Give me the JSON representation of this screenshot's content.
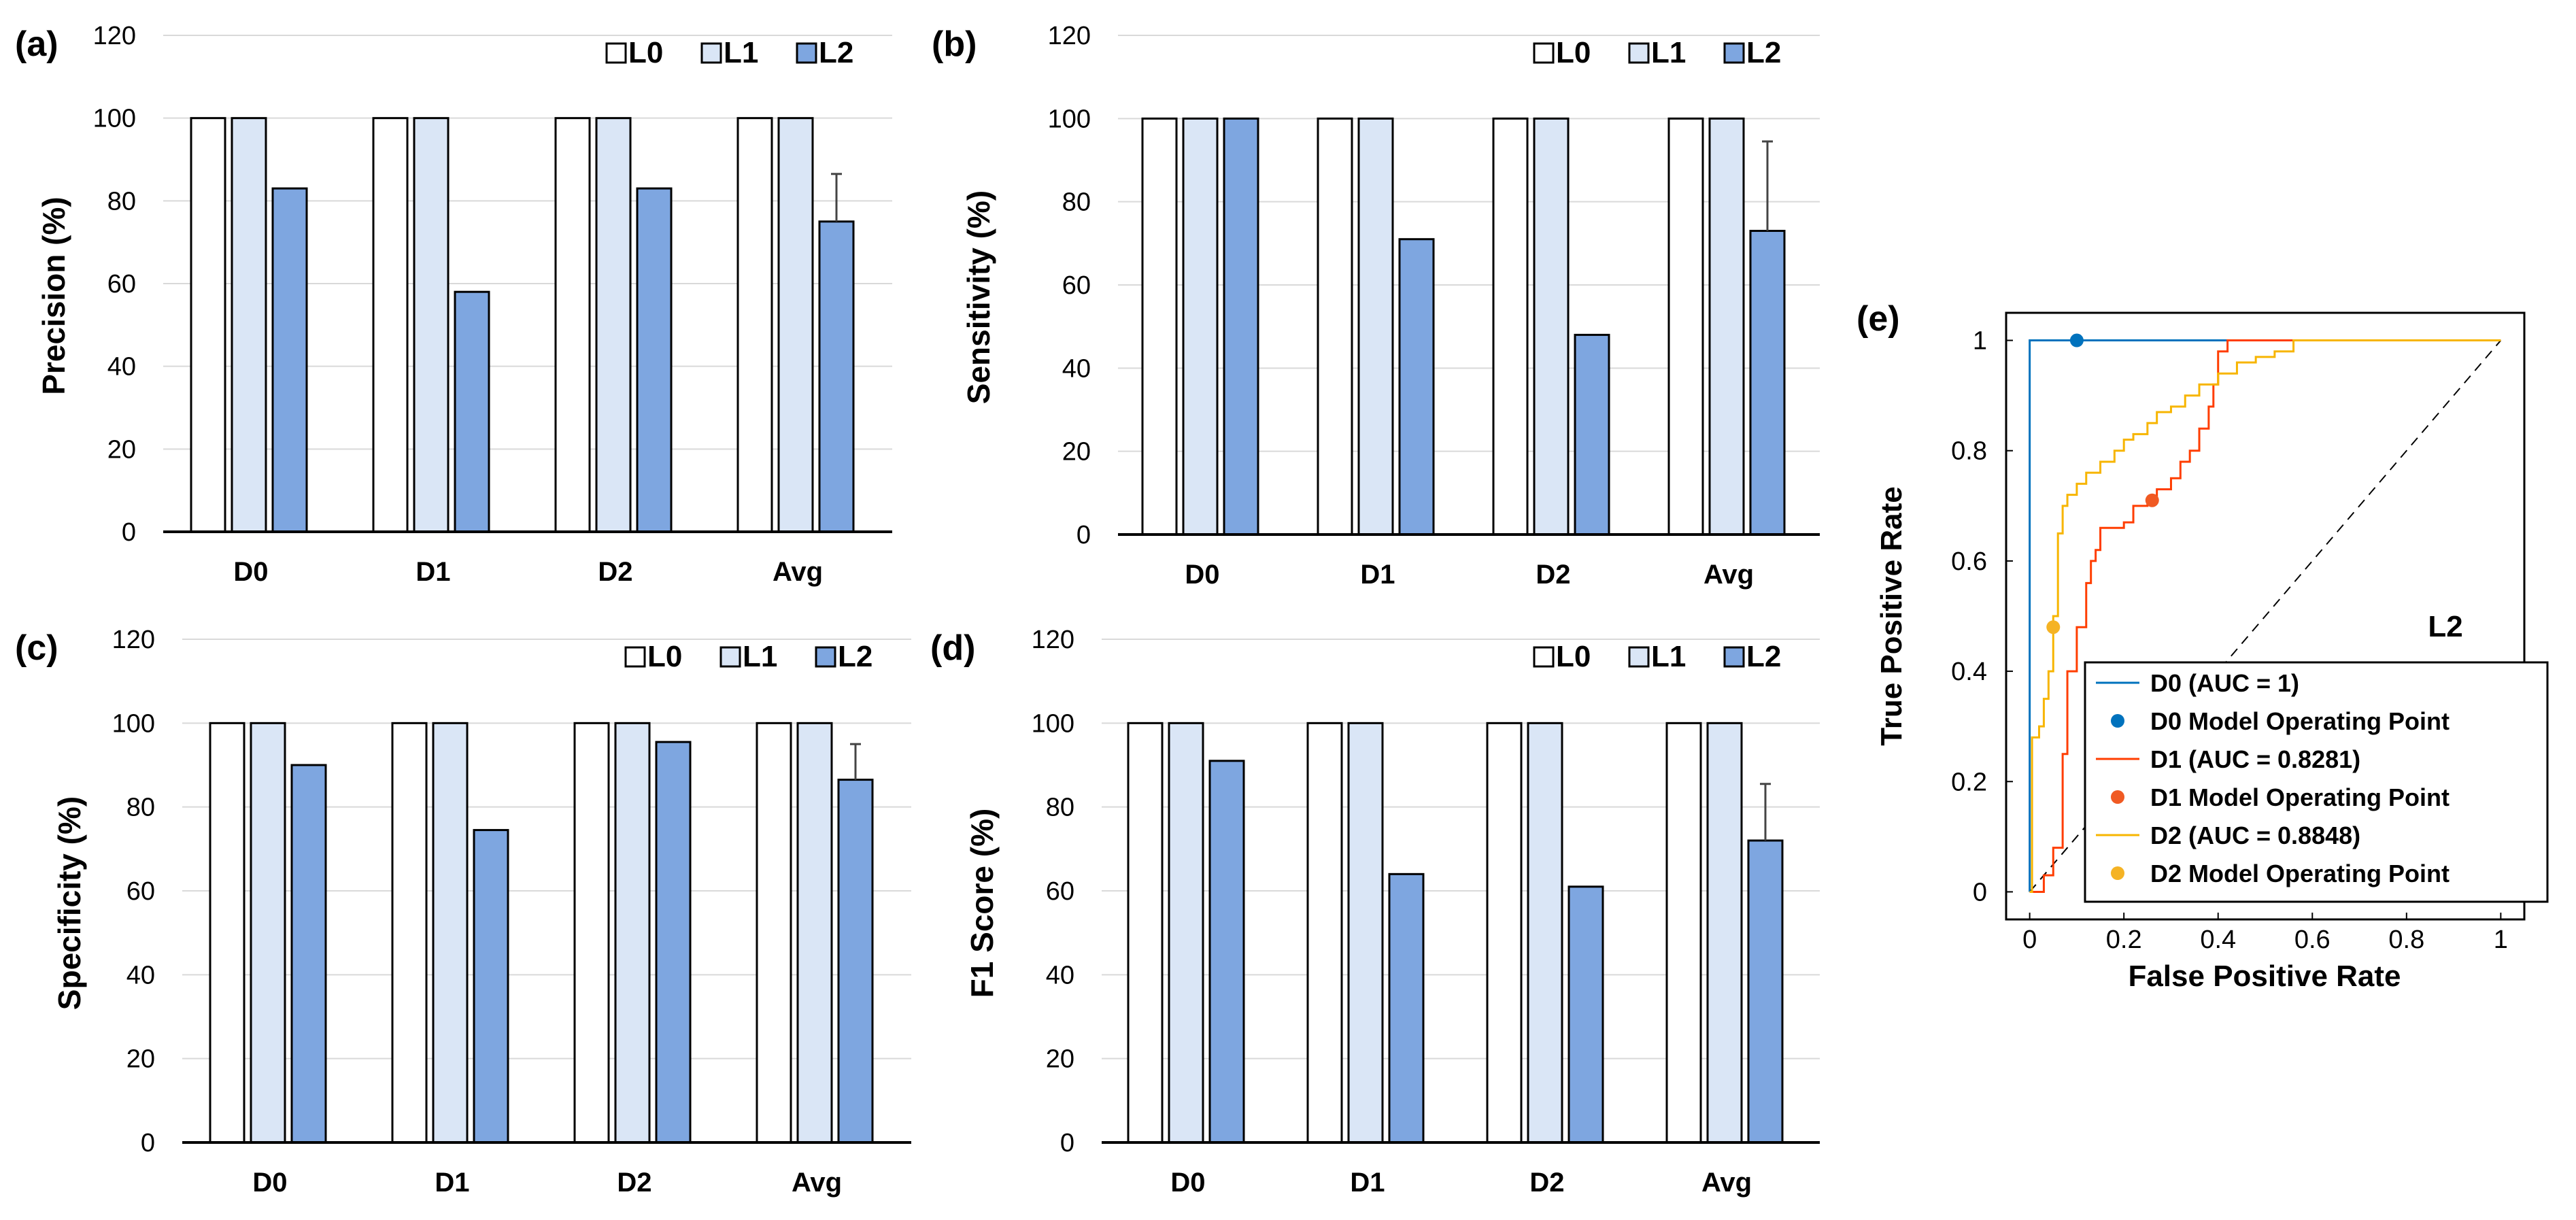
{
  "colors": {
    "L0": "#ffffff",
    "L1": "#dae6f6",
    "L2": "#7ea6e0",
    "grid": "#d9d9d9",
    "D0_roc": "#0072bd",
    "D1_roc": "#ff3d00",
    "D2_roc": "#f7b500",
    "D0_point": "#0072bd",
    "D1_point": "#f05a23",
    "D2_point": "#f5b324"
  },
  "chart_data": [
    {
      "id": "a",
      "panel_label": "(a)",
      "type": "bar",
      "ylabel": "Precision (%)",
      "ylim": [
        0,
        120
      ],
      "yticks": [
        "0",
        "20",
        "40",
        "60",
        "80",
        "100",
        "120"
      ],
      "categories": [
        "D0",
        "D1",
        "D2",
        "Avg"
      ],
      "legend": [
        "L0",
        "L1",
        "L2"
      ],
      "legend_position": "top-right",
      "grid": true,
      "series": [
        {
          "name": "L0",
          "values": [
            100,
            100,
            100,
            100
          ]
        },
        {
          "name": "L1",
          "values": [
            100,
            100,
            100,
            100
          ]
        },
        {
          "name": "L2",
          "values": [
            83,
            58,
            83,
            75
          ],
          "error": [
            0,
            0,
            0,
            11.5
          ]
        }
      ]
    },
    {
      "id": "b",
      "panel_label": "(b)",
      "type": "bar",
      "ylabel": "Sensitivity (%)",
      "ylim": [
        0,
        120
      ],
      "yticks": [
        "0",
        "20",
        "40",
        "60",
        "80",
        "100",
        "120"
      ],
      "categories": [
        "D0",
        "D1",
        "D2",
        "Avg"
      ],
      "legend": [
        "L0",
        "L1",
        "L2"
      ],
      "legend_position": "top-right",
      "grid": true,
      "series": [
        {
          "name": "L0",
          "values": [
            100,
            100,
            100,
            100
          ]
        },
        {
          "name": "L1",
          "values": [
            100,
            100,
            100,
            100
          ]
        },
        {
          "name": "L2",
          "values": [
            100,
            71,
            48,
            73
          ],
          "error": [
            0,
            0,
            0,
            21.5
          ]
        }
      ]
    },
    {
      "id": "c",
      "panel_label": "(c)",
      "type": "bar",
      "ylabel": "Specificity (%)",
      "ylim": [
        0,
        120
      ],
      "yticks": [
        "0",
        "20",
        "40",
        "60",
        "80",
        "100",
        "120"
      ],
      "categories": [
        "D0",
        "D1",
        "D2",
        "Avg"
      ],
      "legend": [
        "L0",
        "L1",
        "L2"
      ],
      "legend_position": "top-right",
      "grid": true,
      "series": [
        {
          "name": "L0",
          "values": [
            100,
            100,
            100,
            100
          ]
        },
        {
          "name": "L1",
          "values": [
            100,
            100,
            100,
            100
          ]
        },
        {
          "name": "L2",
          "values": [
            90,
            74.5,
            95.5,
            86.5
          ],
          "error": [
            0,
            0,
            0,
            8.5
          ]
        }
      ]
    },
    {
      "id": "d",
      "panel_label": "(d)",
      "type": "bar",
      "ylabel": "F1 Score (%)",
      "ylim": [
        0,
        120
      ],
      "yticks": [
        "0",
        "20",
        "40",
        "60",
        "80",
        "100",
        "120"
      ],
      "categories": [
        "D0",
        "D1",
        "D2",
        "Avg"
      ],
      "legend": [
        "L0",
        "L1",
        "L2"
      ],
      "legend_position": "top-right",
      "grid": true,
      "series": [
        {
          "name": "L0",
          "values": [
            100,
            100,
            100,
            100
          ]
        },
        {
          "name": "L1",
          "values": [
            100,
            100,
            100,
            100
          ]
        },
        {
          "name": "L2",
          "values": [
            91,
            64,
            61,
            72
          ],
          "error": [
            0,
            0,
            0,
            13.5
          ]
        }
      ]
    },
    {
      "id": "e",
      "panel_label": "(e)",
      "type": "line",
      "title": "L2",
      "xlabel": "False Positive Rate",
      "ylabel": "True Positive Rate",
      "xlim": [
        0,
        1
      ],
      "ylim": [
        0,
        1
      ],
      "xticks": [
        "0",
        "0.2",
        "0.4",
        "0.6",
        "0.8",
        "1"
      ],
      "yticks": [
        "0",
        "0.2",
        "0.4",
        "0.6",
        "0.8",
        "1"
      ],
      "legend_position": "bottom-right",
      "series": [
        {
          "name": "D0 (AUC = 1)",
          "x": [
            0,
            0,
            1
          ],
          "y": [
            0,
            1,
            1
          ]
        },
        {
          "name": "D1 (AUC = 0.8281)",
          "x": [
            0,
            0.03,
            0.05,
            0.07,
            0.08,
            0.1,
            0.12,
            0.13,
            0.14,
            0.15,
            0.17,
            0.2,
            0.22,
            0.25,
            0.27,
            0.3,
            0.32,
            0.34,
            0.36,
            0.38,
            0.39,
            0.4,
            0.42,
            0.5,
            1
          ],
          "y": [
            0,
            0.03,
            0.08,
            0.25,
            0.4,
            0.48,
            0.56,
            0.6,
            0.62,
            0.66,
            0.66,
            0.67,
            0.7,
            0.71,
            0.73,
            0.75,
            0.78,
            0.8,
            0.84,
            0.88,
            0.92,
            0.98,
            1,
            1,
            1
          ]
        },
        {
          "name": "D2 (AUC = 0.8848)",
          "x": [
            0,
            0.005,
            0.02,
            0.03,
            0.04,
            0.05,
            0.06,
            0.07,
            0.08,
            0.1,
            0.12,
            0.15,
            0.18,
            0.2,
            0.22,
            0.25,
            0.27,
            0.3,
            0.33,
            0.36,
            0.4,
            0.44,
            0.48,
            0.52,
            0.56,
            1
          ],
          "y": [
            0,
            0.28,
            0.3,
            0.35,
            0.4,
            0.5,
            0.65,
            0.7,
            0.72,
            0.74,
            0.76,
            0.78,
            0.8,
            0.82,
            0.83,
            0.85,
            0.87,
            0.88,
            0.9,
            0.92,
            0.94,
            0.96,
            0.97,
            0.98,
            1,
            1
          ]
        },
        {
          "name": "D0 Model Operating Point",
          "x": [
            0.1
          ],
          "y": [
            1
          ]
        },
        {
          "name": "D1 Model Operating Point",
          "x": [
            0.26
          ],
          "y": [
            0.71
          ]
        },
        {
          "name": "D2 Model Operating Point",
          "x": [
            0.05
          ],
          "y": [
            0.48
          ]
        }
      ],
      "diagonal": true
    }
  ]
}
